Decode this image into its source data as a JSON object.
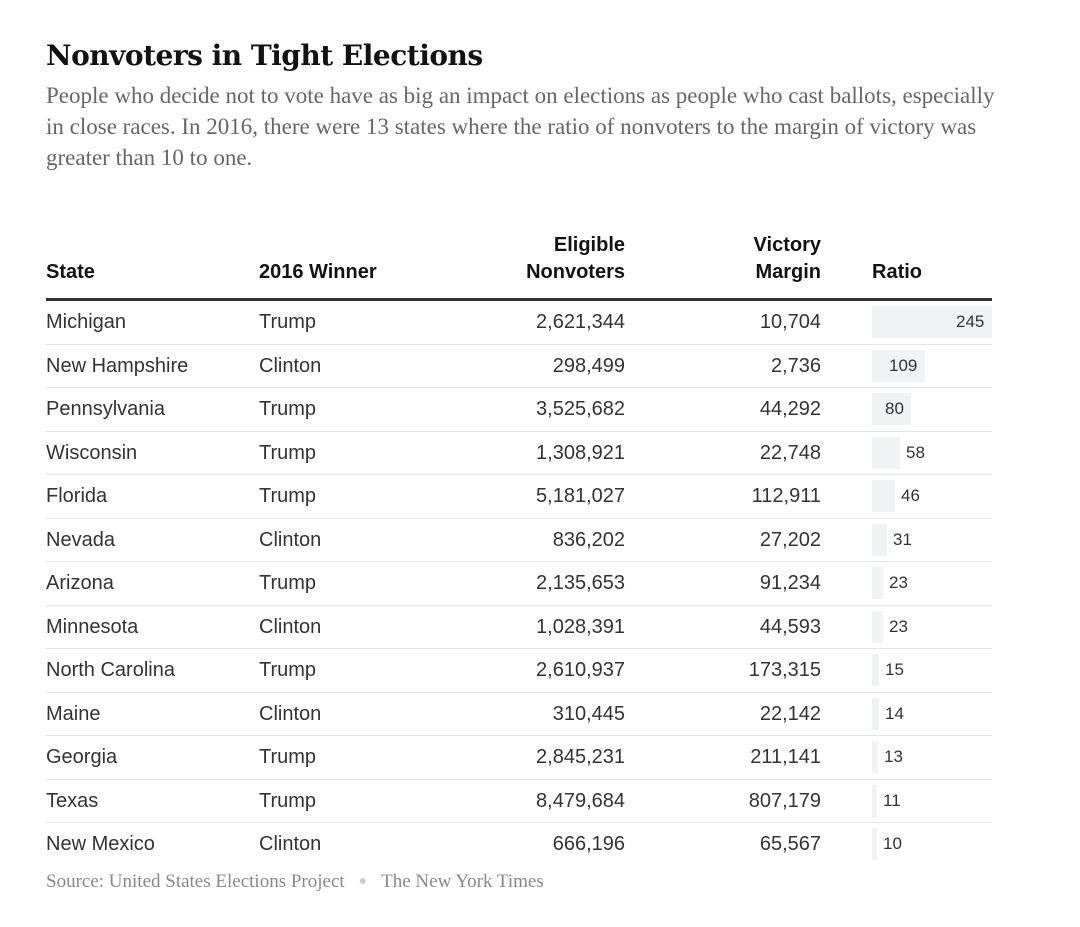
{
  "title": "Nonvoters in Tight Elections",
  "subtitle": "People who decide not to vote have as big an impact on elections as people who cast ballots, especially in close races. In 2016, there were 13 states where the ratio of nonvoters to the margin of victory was greater than 10 to one.",
  "columns": {
    "state": "State",
    "winner": "2016 Winner",
    "nonvoters_line1": "Eligible",
    "nonvoters_line2": "Nonvoters",
    "margin_line1": "Victory",
    "margin_line2": "Margin",
    "ratio": "Ratio"
  },
  "colors": {
    "ratio_bar": "#f0f2f3",
    "rule": "#333333",
    "row_divider": "#e5e5e5"
  },
  "chart_data": {
    "type": "table",
    "ratio_max": 245,
    "rows": [
      {
        "state": "Michigan",
        "winner": "Trump",
        "nonvoters": "2,621,344",
        "margin": "10,704",
        "ratio": 245
      },
      {
        "state": "New Hampshire",
        "winner": "Clinton",
        "nonvoters": "298,499",
        "margin": "2,736",
        "ratio": 109
      },
      {
        "state": "Pennsylvania",
        "winner": "Trump",
        "nonvoters": "3,525,682",
        "margin": "44,292",
        "ratio": 80
      },
      {
        "state": "Wisconsin",
        "winner": "Trump",
        "nonvoters": "1,308,921",
        "margin": "22,748",
        "ratio": 58
      },
      {
        "state": "Florida",
        "winner": "Trump",
        "nonvoters": "5,181,027",
        "margin": "112,911",
        "ratio": 46
      },
      {
        "state": "Nevada",
        "winner": "Clinton",
        "nonvoters": "836,202",
        "margin": "27,202",
        "ratio": 31
      },
      {
        "state": "Arizona",
        "winner": "Trump",
        "nonvoters": "2,135,653",
        "margin": "91,234",
        "ratio": 23
      },
      {
        "state": "Minnesota",
        "winner": "Clinton",
        "nonvoters": "1,028,391",
        "margin": "44,593",
        "ratio": 23
      },
      {
        "state": "North Carolina",
        "winner": "Trump",
        "nonvoters": "2,610,937",
        "margin": "173,315",
        "ratio": 15
      },
      {
        "state": "Maine",
        "winner": "Clinton",
        "nonvoters": "310,445",
        "margin": "22,142",
        "ratio": 14
      },
      {
        "state": "Georgia",
        "winner": "Trump",
        "nonvoters": "2,845,231",
        "margin": "211,141",
        "ratio": 13
      },
      {
        "state": "Texas",
        "winner": "Trump",
        "nonvoters": "8,479,684",
        "margin": "807,179",
        "ratio": 11
      },
      {
        "state": "New Mexico",
        "winner": "Clinton",
        "nonvoters": "666,196",
        "margin": "65,567",
        "ratio": 10
      }
    ]
  },
  "source": {
    "text": "Source: United States Elections Project",
    "credit": "The New York Times"
  }
}
